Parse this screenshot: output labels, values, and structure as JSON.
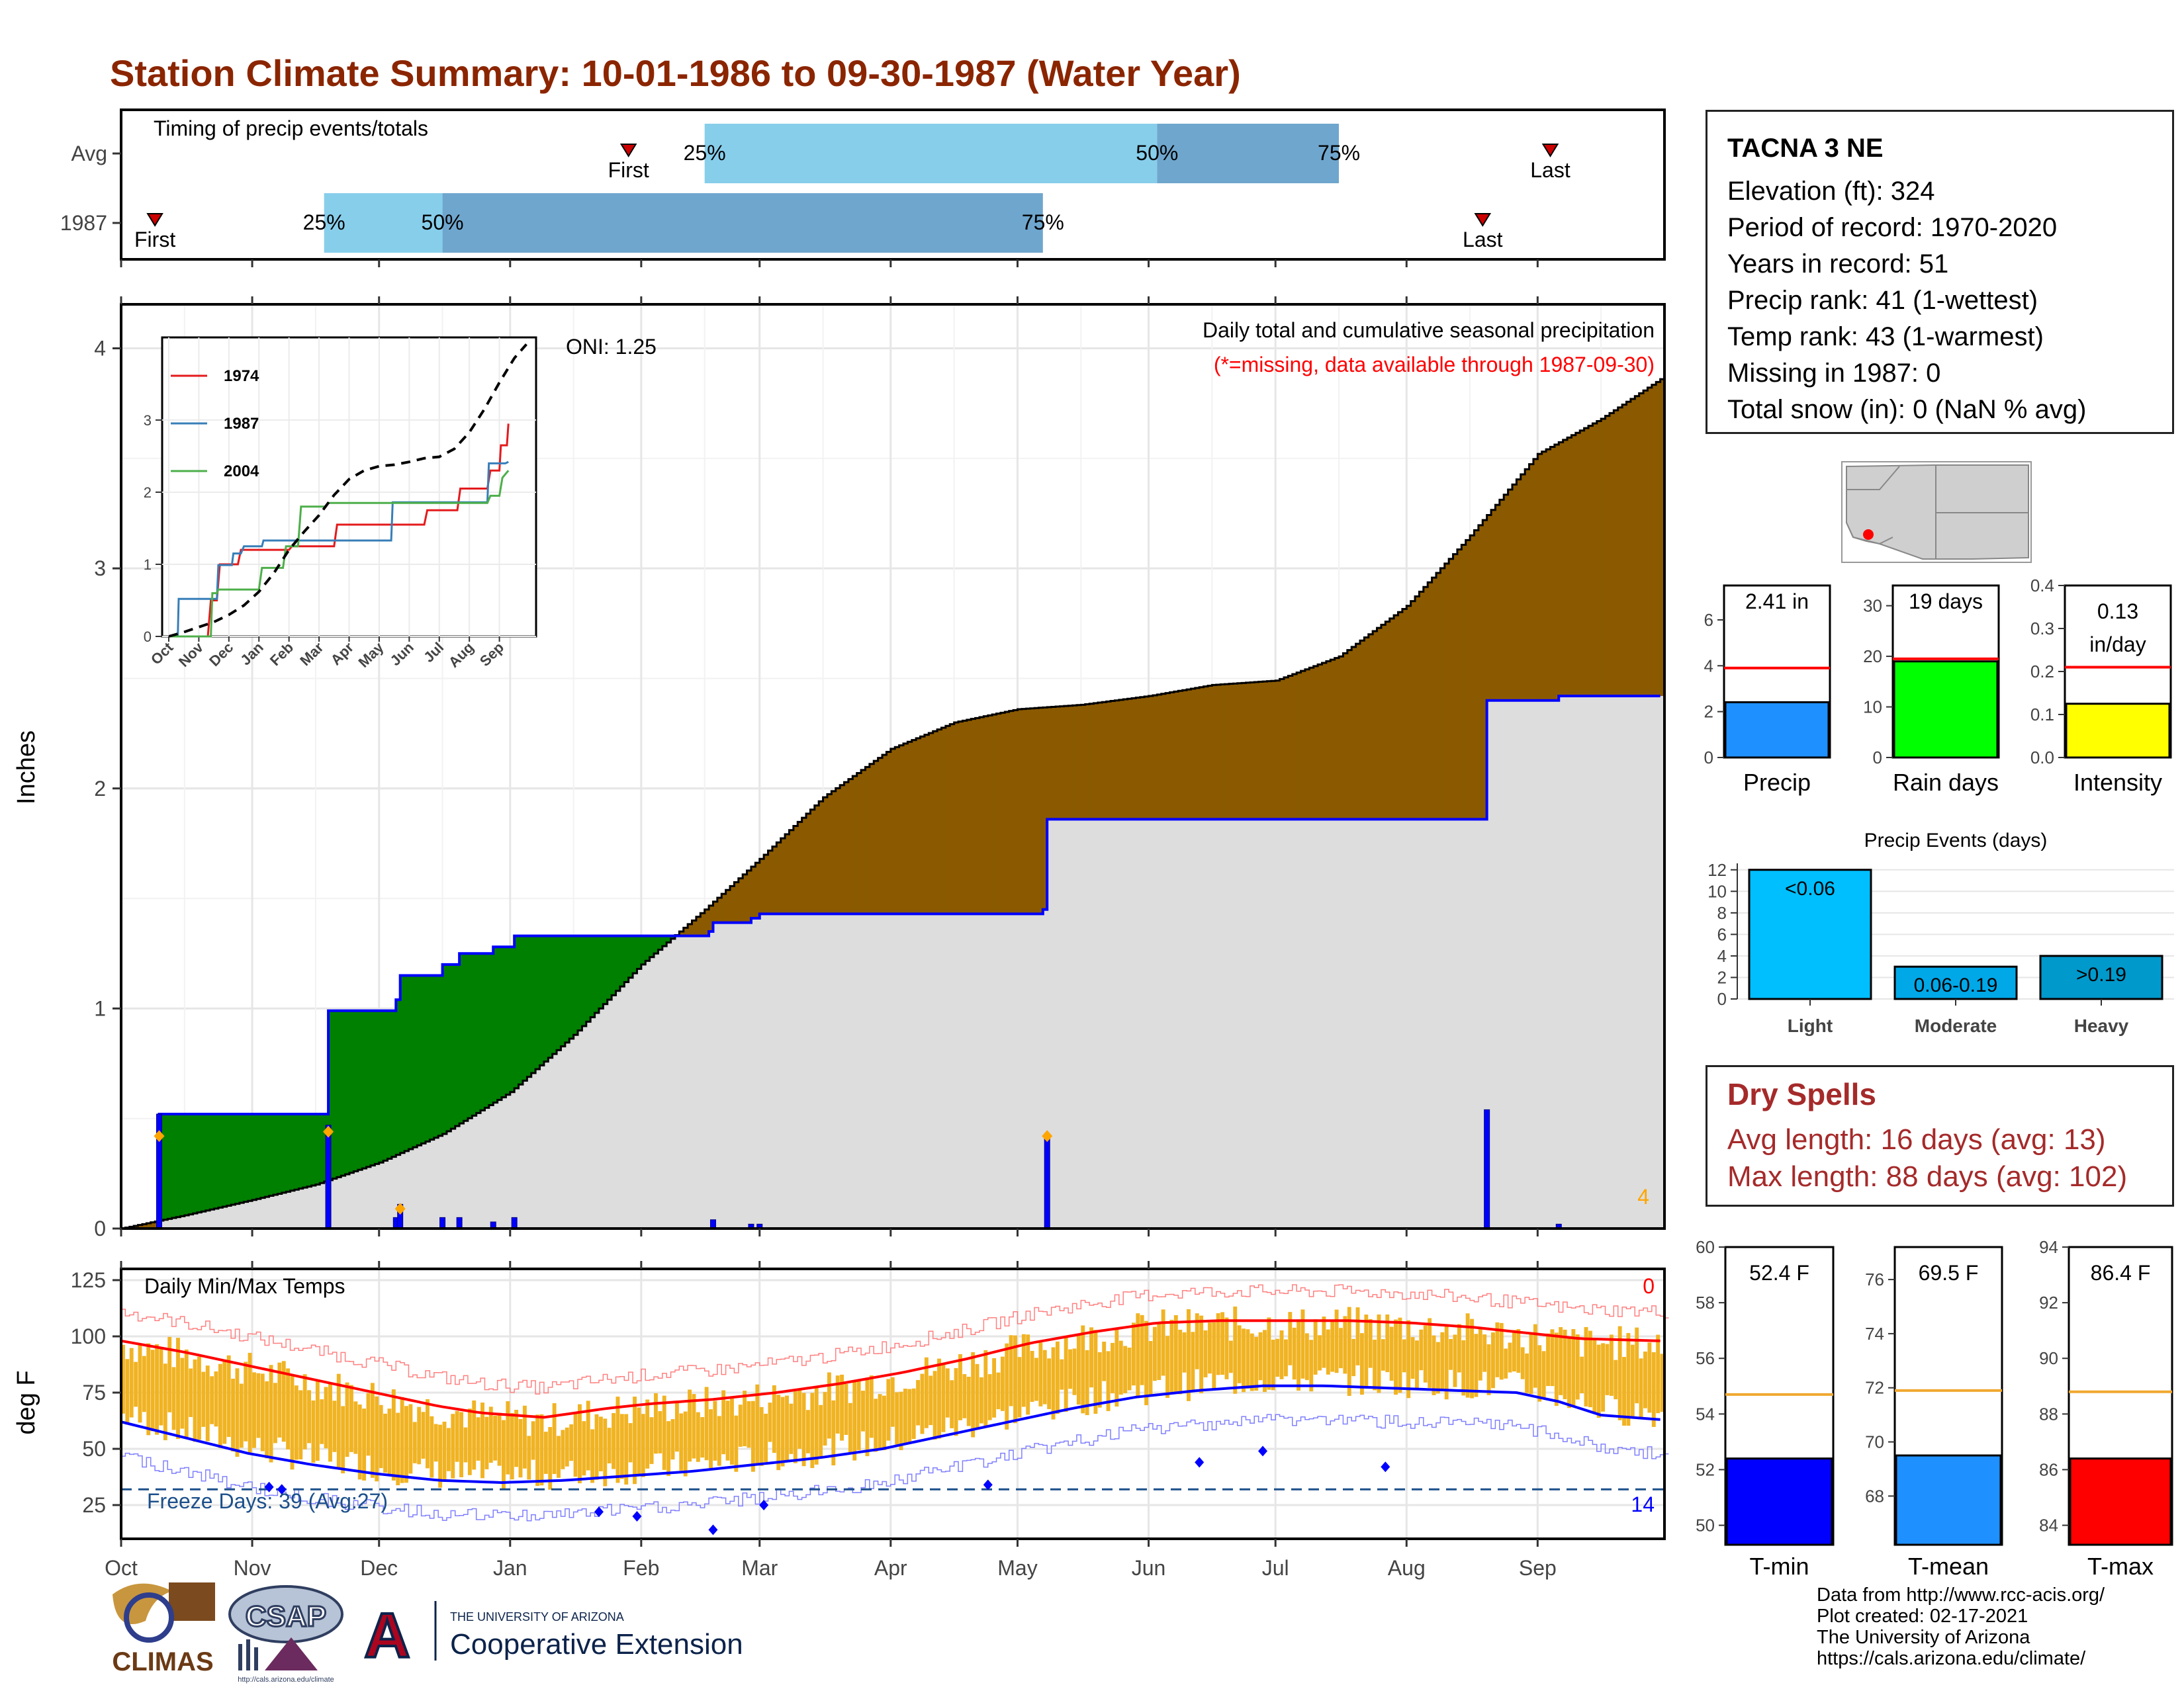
{
  "title": "Station Climate Summary: 10-01-1986 to 09-30-1987 (Water Year)",
  "colors": {
    "title": "#8B2500",
    "green_fill": "#008000",
    "brown_fill": "#8B5A00",
    "gray_fill": "#DDDDDD",
    "blue_line": "#0000FF",
    "red_line": "#FF0000",
    "orange_bar": "#F0B323",
    "light_blue": "#87CEEB",
    "steel_blue": "#6FA6CD"
  },
  "timing": {
    "title": "Timing of precip events/totals",
    "rows": [
      {
        "label": "Avg",
        "first": "First",
        "last": "Last",
        "first_date": "1987-01-29",
        "last_date": "1987-09-04",
        "p25_date": "1987-02-16",
        "p50_date": "1987-06-03",
        "p75_date": "1987-07-16",
        "p25": "25%",
        "p50": "50%",
        "p75": "75%"
      },
      {
        "label": "1987",
        "first": "First",
        "last": "Last",
        "first_date": "1986-10-09",
        "last_date": "1987-08-19",
        "p25_date": "1986-11-18",
        "p50_date": "1986-12-16",
        "p75_date": "1987-05-07",
        "p25": "25%",
        "p50": "50%",
        "p75": "75%"
      }
    ]
  },
  "precip": {
    "title": "Daily total and cumulative seasonal precipitation",
    "missing_note": "(*=missing, data available through 1987-09-30)",
    "oni": "ONI: 1.25",
    "ylabel": "Inches",
    "yticks": [
      "0",
      "1",
      "2",
      "3",
      "4"
    ],
    "ylim": [
      0,
      4.2
    ],
    "corner_count": "4",
    "cumulative_1987": [
      [
        "1986-10-01",
        0
      ],
      [
        "1986-10-09",
        0
      ],
      [
        "1986-10-10",
        0.52
      ],
      [
        "1986-11-18",
        0.52
      ],
      [
        "1986-11-19",
        0.99
      ],
      [
        "1986-12-04",
        0.99
      ],
      [
        "1986-12-05",
        1.04
      ],
      [
        "1986-12-06",
        1.15
      ],
      [
        "1986-12-16",
        1.2
      ],
      [
        "1986-12-20",
        1.25
      ],
      [
        "1986-12-28",
        1.28
      ],
      [
        "1987-01-02",
        1.33
      ],
      [
        "1987-02-17",
        1.35
      ],
      [
        "1987-02-18",
        1.39
      ],
      [
        "1987-02-27",
        1.41
      ],
      [
        "1987-03-01",
        1.43
      ],
      [
        "1987-05-07",
        1.45
      ],
      [
        "1987-05-08",
        1.86
      ],
      [
        "1987-08-19",
        1.86
      ],
      [
        "1987-08-20",
        2.4
      ],
      [
        "1987-09-05",
        2.4
      ],
      [
        "1987-09-06",
        2.42
      ],
      [
        "1987-09-30",
        2.42
      ]
    ],
    "cumulative_avg": [
      [
        "1986-10-01",
        0
      ],
      [
        "1986-10-16",
        0.06
      ],
      [
        "1986-11-01",
        0.13
      ],
      [
        "1986-11-16",
        0.2
      ],
      [
        "1986-12-01",
        0.3
      ],
      [
        "1986-12-16",
        0.43
      ],
      [
        "1987-01-01",
        0.62
      ],
      [
        "1987-01-16",
        0.88
      ],
      [
        "1987-02-01",
        1.2
      ],
      [
        "1987-02-16",
        1.45
      ],
      [
        "1987-03-01",
        1.68
      ],
      [
        "1987-03-16",
        1.96
      ],
      [
        "1987-04-01",
        2.18
      ],
      [
        "1987-04-16",
        2.3
      ],
      [
        "1987-05-01",
        2.36
      ],
      [
        "1987-05-16",
        2.38
      ],
      [
        "1987-06-01",
        2.42
      ],
      [
        "1987-06-16",
        2.47
      ],
      [
        "1987-07-01",
        2.49
      ],
      [
        "1987-07-16",
        2.6
      ],
      [
        "1987-08-01",
        2.83
      ],
      [
        "1987-08-16",
        3.15
      ],
      [
        "1987-09-01",
        3.52
      ],
      [
        "1987-09-16",
        3.68
      ],
      [
        "1987-09-30",
        3.86
      ]
    ],
    "daily_bars": [
      [
        "1986-10-10",
        0.52
      ],
      [
        "1986-11-19",
        0.47
      ],
      [
        "1986-12-05",
        0.05
      ],
      [
        "1986-12-06",
        0.11
      ],
      [
        "1986-12-16",
        0.05
      ],
      [
        "1986-12-20",
        0.05
      ],
      [
        "1986-12-28",
        0.03
      ],
      [
        "1987-01-02",
        0.05
      ],
      [
        "1987-02-18",
        0.04
      ],
      [
        "1987-02-27",
        0.02
      ],
      [
        "1987-03-01",
        0.02
      ],
      [
        "1987-05-08",
        0.41
      ],
      [
        "1987-08-20",
        0.54
      ],
      [
        "1987-09-06",
        0.02
      ]
    ],
    "trace_markers": [
      [
        "1986-10-10",
        0.42
      ],
      [
        "1986-11-19",
        0.44
      ],
      [
        "1986-12-06",
        0.09
      ],
      [
        "1987-05-08",
        0.42
      ]
    ]
  },
  "inset": {
    "yticks": [
      "0",
      "1",
      "2",
      "3"
    ],
    "months": [
      "Oct",
      "Nov",
      "Dec",
      "Jan",
      "Feb",
      "Mar",
      "Apr",
      "May",
      "Jun",
      "Jul",
      "Aug",
      "Sep"
    ],
    "series": [
      {
        "name": "1974",
        "color": "#E41A1C",
        "points": [
          [
            0,
            0
          ],
          [
            1.3,
            0
          ],
          [
            1.4,
            0.5
          ],
          [
            1.6,
            0.5
          ],
          [
            1.7,
            1.0
          ],
          [
            2.3,
            1.0
          ],
          [
            2.4,
            1.2
          ],
          [
            4.0,
            1.2
          ],
          [
            4.1,
            1.25
          ],
          [
            5.5,
            1.25
          ],
          [
            5.6,
            1.55
          ],
          [
            8.5,
            1.55
          ],
          [
            8.6,
            1.75
          ],
          [
            9.6,
            1.75
          ],
          [
            9.7,
            2.05
          ],
          [
            10.6,
            2.05
          ],
          [
            10.7,
            2.3
          ],
          [
            11.0,
            2.3
          ],
          [
            11.05,
            2.65
          ],
          [
            11.25,
            2.65
          ],
          [
            11.3,
            2.95
          ]
        ]
      },
      {
        "name": "1987",
        "color": "#377EB8",
        "points": [
          [
            0,
            0
          ],
          [
            0.3,
            0
          ],
          [
            0.33,
            0.52
          ],
          [
            1.6,
            0.52
          ],
          [
            1.65,
            0.99
          ],
          [
            2.1,
            0.99
          ],
          [
            2.15,
            1.15
          ],
          [
            2.4,
            1.15
          ],
          [
            2.5,
            1.25
          ],
          [
            3.1,
            1.25
          ],
          [
            3.15,
            1.33
          ],
          [
            7.4,
            1.33
          ],
          [
            7.45,
            1.86
          ],
          [
            10.6,
            1.86
          ],
          [
            10.65,
            2.4
          ],
          [
            11.2,
            2.4
          ],
          [
            11.3,
            2.42
          ]
        ]
      },
      {
        "name": "2004",
        "color": "#4DAF4A",
        "points": [
          [
            0,
            0
          ],
          [
            1.4,
            0
          ],
          [
            1.45,
            0.6
          ],
          [
            1.6,
            0.6
          ],
          [
            1.65,
            0.65
          ],
          [
            3.0,
            0.65
          ],
          [
            3.1,
            0.95
          ],
          [
            3.8,
            0.95
          ],
          [
            3.9,
            1.25
          ],
          [
            4.3,
            1.25
          ],
          [
            4.4,
            1.8
          ],
          [
            5.2,
            1.8
          ],
          [
            5.3,
            1.85
          ],
          [
            10.6,
            1.85
          ],
          [
            10.7,
            1.95
          ],
          [
            11.0,
            1.95
          ],
          [
            11.1,
            2.2
          ],
          [
            11.3,
            2.3
          ]
        ]
      }
    ],
    "avg_line": [
      [
        0,
        0
      ],
      [
        0.5,
        0.06
      ],
      [
        1.0,
        0.13
      ],
      [
        1.5,
        0.2
      ],
      [
        2.0,
        0.3
      ],
      [
        2.5,
        0.43
      ],
      [
        3.0,
        0.62
      ],
      [
        3.5,
        0.88
      ],
      [
        4.0,
        1.2
      ],
      [
        4.5,
        1.45
      ],
      [
        5.0,
        1.68
      ],
      [
        5.5,
        1.96
      ],
      [
        6.0,
        2.18
      ],
      [
        6.5,
        2.3
      ],
      [
        7.0,
        2.36
      ],
      [
        7.5,
        2.38
      ],
      [
        8.0,
        2.42
      ],
      [
        8.5,
        2.47
      ],
      [
        9.0,
        2.49
      ],
      [
        9.5,
        2.6
      ],
      [
        10.0,
        2.83
      ],
      [
        10.5,
        3.15
      ],
      [
        11.0,
        3.52
      ],
      [
        11.5,
        3.86
      ],
      [
        11.9,
        4.05
      ]
    ]
  },
  "temps": {
    "title": "Daily Min/Max Temps",
    "ylabel": "deg F",
    "yticks": [
      "25",
      "50",
      "75",
      "100",
      "125"
    ],
    "ylim": [
      10,
      130
    ],
    "freeze_label": "Freeze Days: 39 (Avg:27)",
    "freeze_line": 32,
    "max_count": "0",
    "min_count": "14",
    "avg_max_points": [
      [
        0,
        98
      ],
      [
        15,
        93
      ],
      [
        30,
        87
      ],
      [
        45,
        81
      ],
      [
        60,
        75
      ],
      [
        75,
        69
      ],
      [
        85,
        66
      ],
      [
        100,
        64
      ],
      [
        115,
        68
      ],
      [
        125,
        70
      ],
      [
        140,
        72
      ],
      [
        155,
        75
      ],
      [
        170,
        79
      ],
      [
        185,
        84
      ],
      [
        200,
        90
      ],
      [
        215,
        97
      ],
      [
        230,
        102
      ],
      [
        245,
        106
      ],
      [
        260,
        107
      ],
      [
        275,
        107
      ],
      [
        290,
        107
      ],
      [
        305,
        106
      ],
      [
        320,
        104
      ],
      [
        335,
        101
      ],
      [
        345,
        99
      ],
      [
        364,
        98
      ]
    ],
    "avg_min_points": [
      [
        0,
        62
      ],
      [
        15,
        55
      ],
      [
        30,
        48
      ],
      [
        45,
        43
      ],
      [
        60,
        39
      ],
      [
        75,
        36
      ],
      [
        90,
        35
      ],
      [
        105,
        36
      ],
      [
        120,
        38
      ],
      [
        135,
        40
      ],
      [
        150,
        43
      ],
      [
        165,
        46
      ],
      [
        180,
        50
      ],
      [
        195,
        56
      ],
      [
        210,
        62
      ],
      [
        225,
        68
      ],
      [
        240,
        73
      ],
      [
        255,
        76
      ],
      [
        270,
        78
      ],
      [
        285,
        78
      ],
      [
        300,
        77
      ],
      [
        315,
        76
      ],
      [
        330,
        75
      ],
      [
        340,
        71
      ],
      [
        350,
        65
      ],
      [
        364,
        63
      ]
    ],
    "freeze_markers": [
      [
        35,
        33
      ],
      [
        38,
        32
      ],
      [
        113,
        22
      ],
      [
        122,
        20
      ],
      [
        140,
        14
      ],
      [
        152,
        25
      ],
      [
        205,
        34
      ],
      [
        255,
        44
      ],
      [
        270,
        49
      ],
      [
        299,
        42
      ]
    ]
  },
  "xaxis": {
    "months": [
      "Oct",
      "Nov",
      "Dec",
      "Jan",
      "Feb",
      "Mar",
      "Apr",
      "May",
      "Jun",
      "Jul",
      "Aug",
      "Sep"
    ]
  },
  "station": {
    "name": "TACNA 3 NE",
    "lines": [
      "Elevation (ft): 324",
      "Period of record: 1970-2020",
      "Years in record: 51",
      "Precip rank: 41 (1-wettest)",
      "Temp rank: 43 (1-warmest)",
      "Missing in 1987: 0",
      "Total snow (in): 0 (NaN % avg)"
    ]
  },
  "summary_bars": [
    {
      "label": "Precip",
      "value_text": "2.41 in",
      "value": 2.41,
      "avg": 3.9,
      "ylim": [
        0,
        7.5
      ],
      "yticks": [
        "0",
        "2",
        "4",
        "6"
      ],
      "color": "#1E90FF"
    },
    {
      "label": "Rain days",
      "value_text": "19 days",
      "value": 19,
      "avg": 19.5,
      "ylim": [
        0,
        34
      ],
      "yticks": [
        "0",
        "10",
        "20",
        "30"
      ],
      "color": "#00FF00"
    },
    {
      "label": "Intensity",
      "value_text": "0.13 in/day",
      "value": 0.125,
      "avg": 0.21,
      "ylim": [
        0,
        0.4
      ],
      "yticks": [
        "0.0",
        "0.1",
        "0.2",
        "0.3",
        "0.4"
      ],
      "color": "#FFFF00"
    }
  ],
  "events": {
    "title": "Precip Events (days)",
    "yticks": [
      "0",
      "2",
      "4",
      "6",
      "8",
      "10",
      "12"
    ],
    "ylim": [
      0,
      12.6
    ],
    "bars": [
      {
        "label": "Light",
        "value_label": "<0.06",
        "value": 12,
        "color": "#00BFFF"
      },
      {
        "label": "Moderate",
        "value_label": "0.06-0.19",
        "value": 3,
        "color": "#00A8E8"
      },
      {
        "label": "Heavy",
        "value_label": ">0.19",
        "value": 4,
        "color": "#0099CC"
      }
    ]
  },
  "dry_spells": {
    "title": "Dry Spells",
    "avg_length": "Avg length: 16 days (avg: 13)",
    "max_length": "Max length: 88 days (avg: 102)"
  },
  "temp_bars": [
    {
      "label": "T-min",
      "value_text": "52.4 F",
      "value": 52.4,
      "avg": 54.7,
      "ylim": [
        49.3,
        60
      ],
      "yticks": [
        "50",
        "52",
        "54",
        "56",
        "58",
        "60"
      ],
      "color": "#0000FF"
    },
    {
      "label": "T-mean",
      "value_text": "69.5 F",
      "value": 69.5,
      "avg": 71.9,
      "ylim": [
        66.2,
        77.2
      ],
      "yticks": [
        "68",
        "70",
        "72",
        "74",
        "76"
      ],
      "color": "#1E90FF"
    },
    {
      "label": "T-max",
      "value_text": "86.4 F",
      "value": 86.4,
      "avg": 88.8,
      "ylim": [
        83.3,
        94
      ],
      "yticks": [
        "84",
        "86",
        "88",
        "90",
        "92",
        "94"
      ],
      "color": "#FF0000"
    }
  ],
  "footer": {
    "lines": [
      "Data from http://www.rcc-acis.org/",
      "Plot created: 02-17-2021",
      "The University of Arizona",
      "https://cals.arizona.edu/climate/"
    ],
    "climas": "CLIMAS",
    "csap": "CSAP",
    "csap_url": "http://cals.arizona.edu/climate",
    "ua_small": "THE UNIVERSITY OF ARIZONA",
    "ua_big": "Cooperative Extension"
  }
}
